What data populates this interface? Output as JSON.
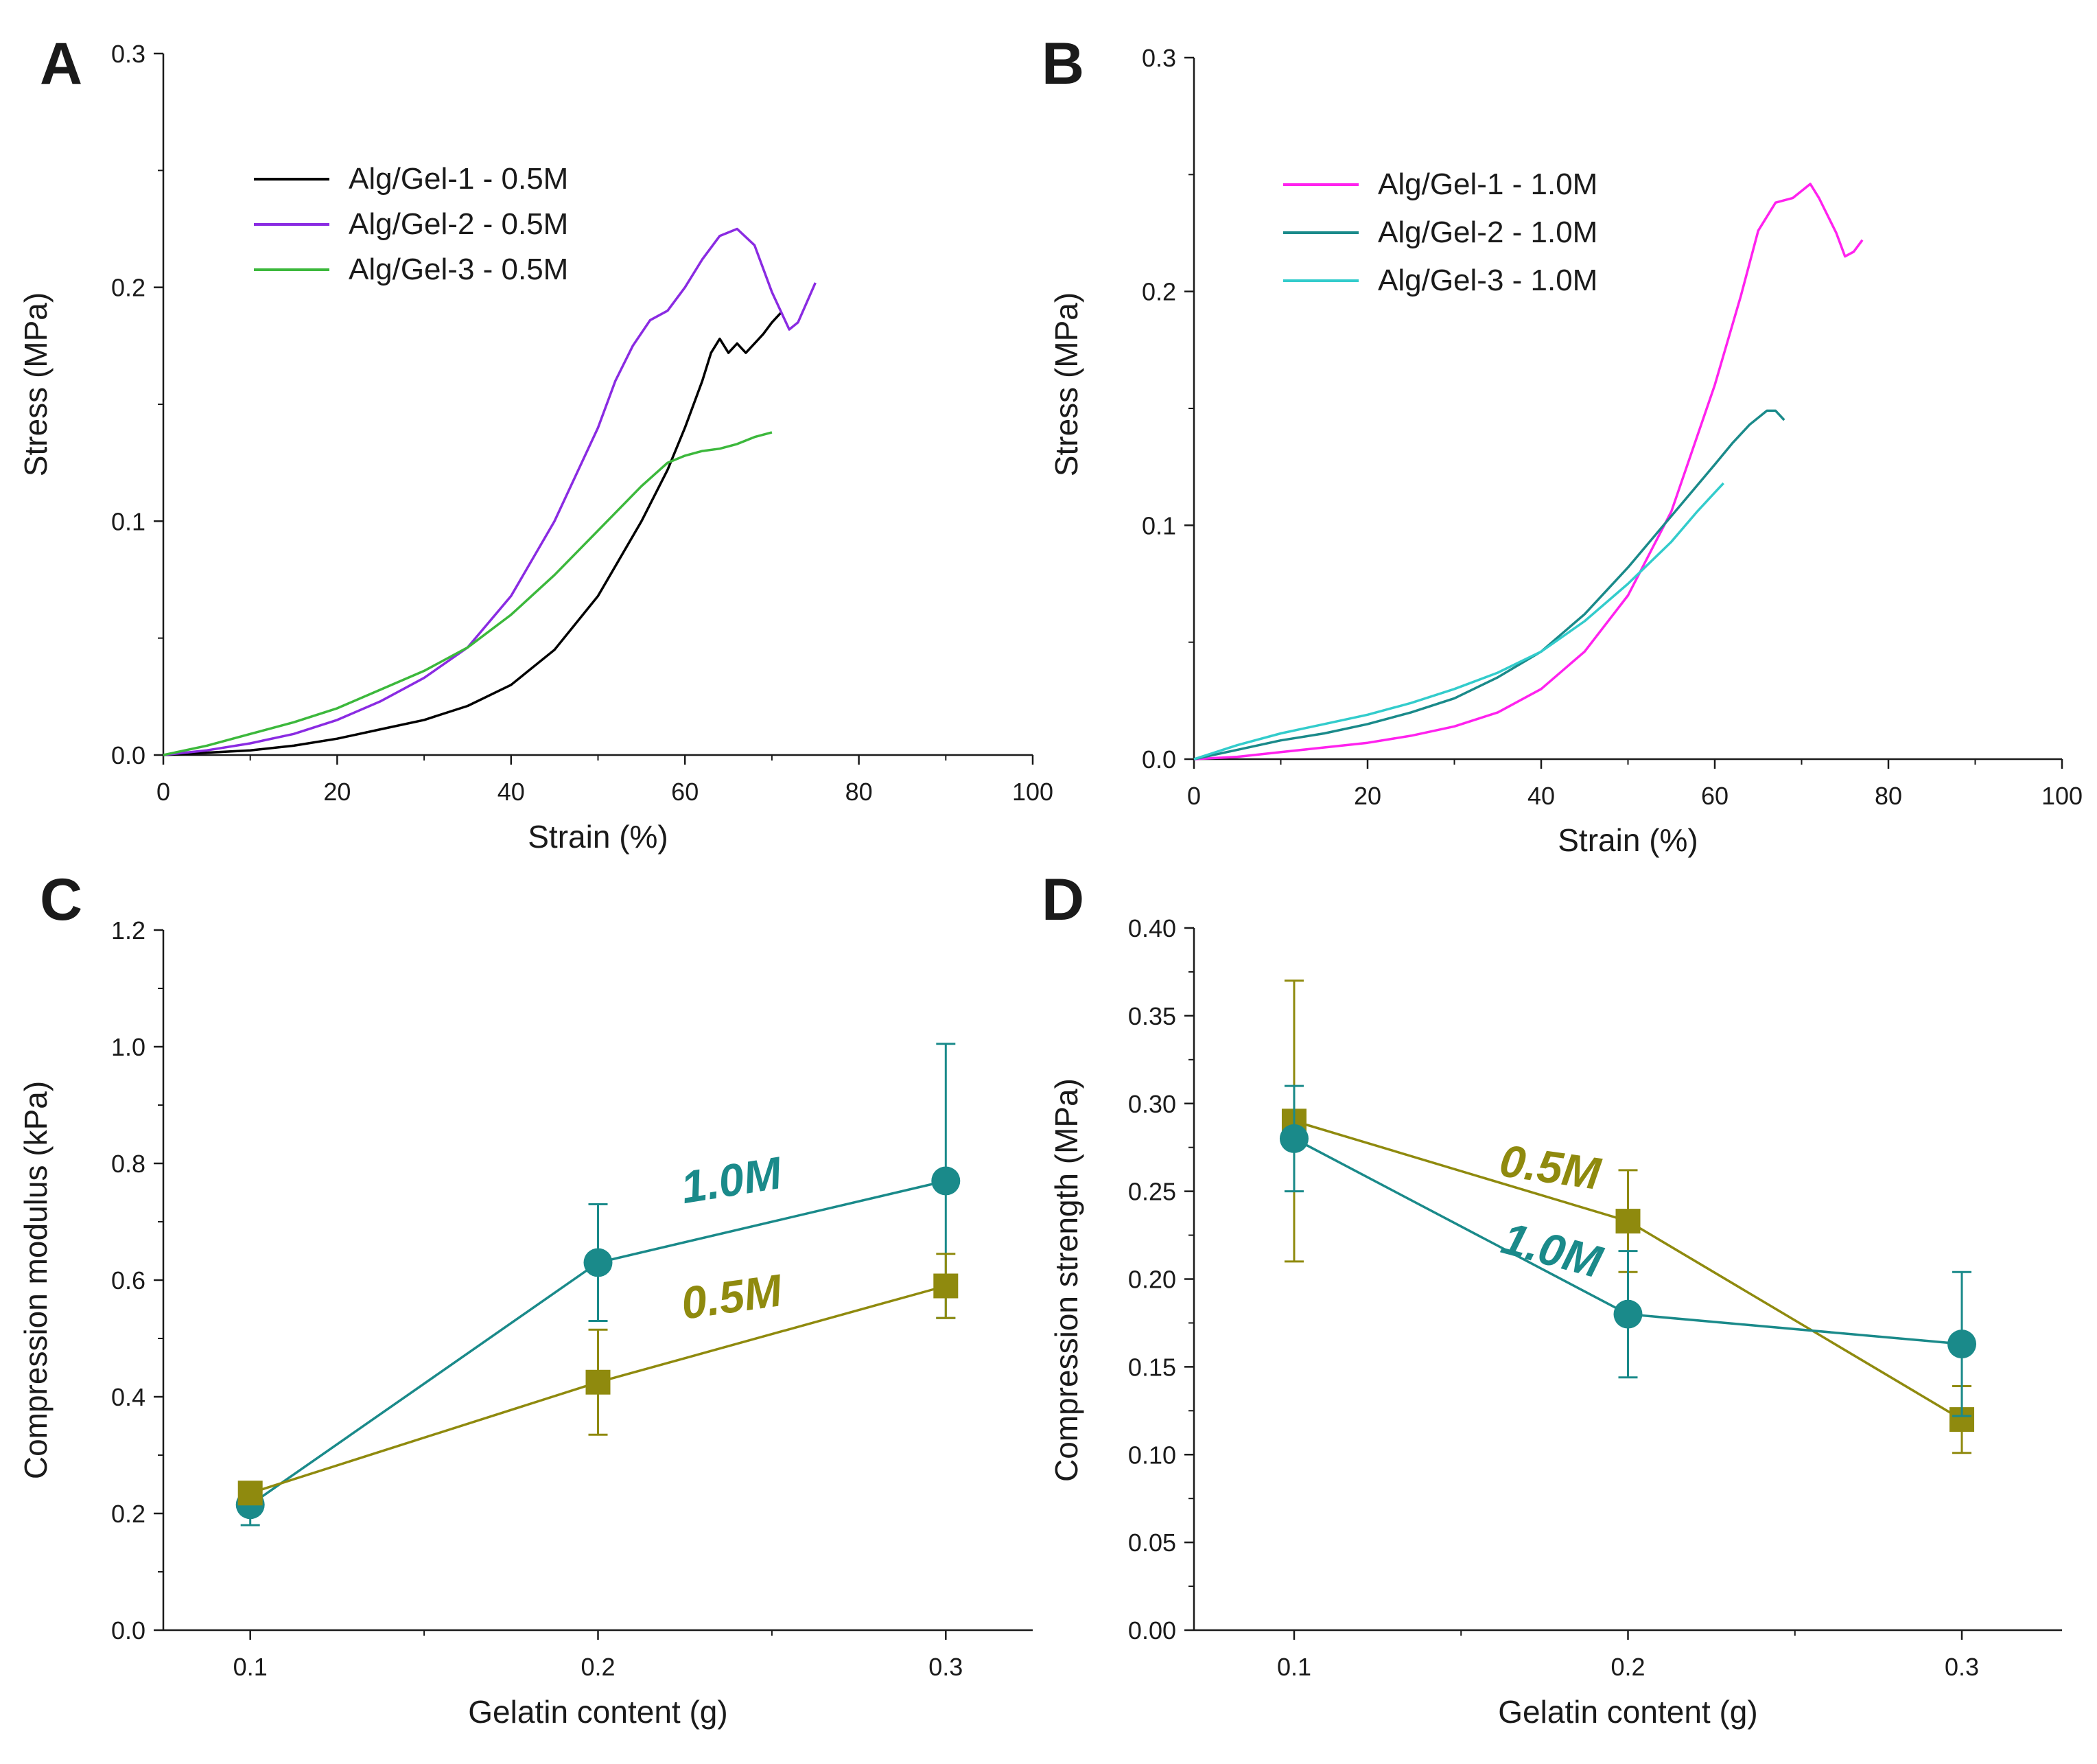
{
  "colors": {
    "axis": "#1a1a1a",
    "black": "#000000",
    "purple": "#8a2be2",
    "green": "#3cb83c",
    "magenta": "#ff22ee",
    "teal": "#1a8a8a",
    "cyan": "#33cccc",
    "olive": "#8f8a0e"
  },
  "chart_data": [
    {
      "panel": "A",
      "type": "line",
      "title": "",
      "xlabel": "Strain (%)",
      "ylabel": "Stress (MPa)",
      "xlim": [
        0,
        100
      ],
      "ylim": [
        0,
        0.3
      ],
      "xticks": [
        0,
        20,
        40,
        60,
        80,
        100
      ],
      "xtick_labels": [
        "0",
        "20",
        "40",
        "60",
        "80",
        "100"
      ],
      "yticks": [
        0,
        0.1,
        0.2,
        0.3
      ],
      "ytick_labels": [
        "0.0",
        "0.1",
        "0.2",
        "0.3"
      ],
      "legend_position": "top-left",
      "series": [
        {
          "name": "Alg/Gel-1 - 0.5M",
          "color_key": "black",
          "x": [
            0,
            5,
            10,
            15,
            20,
            25,
            30,
            35,
            40,
            45,
            50,
            55,
            58,
            60,
            62,
            63,
            64,
            65,
            66,
            67,
            68,
            69,
            70,
            71
          ],
          "y": [
            0,
            0.001,
            0.002,
            0.004,
            0.007,
            0.011,
            0.015,
            0.021,
            0.03,
            0.045,
            0.068,
            0.1,
            0.122,
            0.14,
            0.16,
            0.172,
            0.178,
            0.172,
            0.176,
            0.172,
            0.176,
            0.18,
            0.185,
            0.189
          ]
        },
        {
          "name": "Alg/Gel-2 - 0.5M",
          "color_key": "purple",
          "x": [
            0,
            5,
            10,
            15,
            20,
            25,
            30,
            35,
            40,
            45,
            50,
            52,
            54,
            56,
            58,
            60,
            62,
            64,
            66,
            68,
            70,
            72,
            73,
            75
          ],
          "y": [
            0,
            0.002,
            0.005,
            0.009,
            0.015,
            0.023,
            0.033,
            0.046,
            0.068,
            0.1,
            0.14,
            0.16,
            0.175,
            0.186,
            0.19,
            0.2,
            0.212,
            0.222,
            0.225,
            0.218,
            0.198,
            0.182,
            0.185,
            0.202
          ]
        },
        {
          "name": "Alg/Gel-3 - 0.5M",
          "color_key": "green",
          "x": [
            0,
            5,
            10,
            15,
            20,
            25,
            30,
            35,
            40,
            45,
            50,
            55,
            58,
            60,
            62,
            64,
            66,
            68,
            70
          ],
          "y": [
            0,
            0.004,
            0.009,
            0.014,
            0.02,
            0.028,
            0.036,
            0.046,
            0.06,
            0.077,
            0.096,
            0.115,
            0.125,
            0.128,
            0.13,
            0.131,
            0.133,
            0.136,
            0.138
          ]
        }
      ]
    },
    {
      "panel": "B",
      "type": "line",
      "title": "",
      "xlabel": "Strain (%)",
      "ylabel": "Stress (MPa)",
      "xlim": [
        0,
        100
      ],
      "ylim": [
        0,
        0.3
      ],
      "xticks": [
        0,
        20,
        40,
        60,
        80,
        100
      ],
      "xtick_labels": [
        "0",
        "20",
        "40",
        "60",
        "80",
        "100"
      ],
      "yticks": [
        0,
        0.1,
        0.2,
        0.3
      ],
      "ytick_labels": [
        "0.0",
        "0.1",
        "0.2",
        "0.3"
      ],
      "legend_position": "top-left",
      "series": [
        {
          "name": "Alg/Gel-1 - 1.0M",
          "color_key": "magenta",
          "x": [
            0,
            5,
            10,
            15,
            20,
            25,
            30,
            35,
            40,
            45,
            50,
            55,
            60,
            63,
            65,
            67,
            69,
            71,
            72,
            74,
            75,
            76,
            77
          ],
          "y": [
            0,
            0.001,
            0.003,
            0.005,
            0.007,
            0.01,
            0.014,
            0.02,
            0.03,
            0.046,
            0.07,
            0.106,
            0.16,
            0.198,
            0.226,
            0.238,
            0.24,
            0.246,
            0.24,
            0.225,
            0.215,
            0.217,
            0.222
          ]
        },
        {
          "name": "Alg/Gel-2 - 1.0M",
          "color_key": "teal",
          "x": [
            0,
            5,
            10,
            15,
            20,
            25,
            30,
            35,
            40,
            45,
            50,
            55,
            60,
            62,
            64,
            66,
            67,
            68
          ],
          "y": [
            0,
            0.004,
            0.008,
            0.011,
            0.015,
            0.02,
            0.026,
            0.035,
            0.046,
            0.062,
            0.082,
            0.104,
            0.126,
            0.135,
            0.143,
            0.149,
            0.149,
            0.145
          ]
        },
        {
          "name": "Alg/Gel-3 - 1.0M",
          "color_key": "cyan",
          "x": [
            0,
            5,
            10,
            15,
            20,
            25,
            30,
            35,
            40,
            45,
            50,
            55,
            58,
            60,
            61
          ],
          "y": [
            0,
            0.006,
            0.011,
            0.015,
            0.019,
            0.024,
            0.03,
            0.037,
            0.046,
            0.059,
            0.075,
            0.093,
            0.106,
            0.114,
            0.118
          ]
        }
      ]
    },
    {
      "panel": "C",
      "type": "line",
      "title": "",
      "xlabel": "Gelatin content (g)",
      "ylabel": "Compression modulus (kPa)",
      "xlim": [
        0.075,
        0.325
      ],
      "ylim": [
        0,
        1.2
      ],
      "xticks": [
        0.1,
        0.2,
        0.3
      ],
      "xtick_labels": [
        "0.1",
        "0.2",
        "0.3"
      ],
      "yticks": [
        0,
        0.2,
        0.4,
        0.6,
        0.8,
        1.0,
        1.2
      ],
      "ytick_labels": [
        "0.0",
        "0.2",
        "0.4",
        "0.6",
        "0.8",
        "1.0",
        "1.2"
      ],
      "series": [
        {
          "name": "1.0M",
          "color_key": "teal",
          "marker": "circle",
          "x": [
            0.1,
            0.2,
            0.3
          ],
          "y": [
            0.215,
            0.63,
            0.77
          ],
          "err": [
            0.035,
            0.1,
            0.235
          ],
          "label_at": [
            0.239,
            0.745
          ],
          "label_angle": -9
        },
        {
          "name": "0.5M",
          "color_key": "olive",
          "marker": "square",
          "x": [
            0.1,
            0.2,
            0.3
          ],
          "y": [
            0.235,
            0.425,
            0.59
          ],
          "err": [
            0.01,
            0.09,
            0.055
          ],
          "label_at": [
            0.239,
            0.545
          ],
          "label_angle": -8
        }
      ]
    },
    {
      "panel": "D",
      "type": "line",
      "title": "",
      "xlabel": "Gelatin content (g)",
      "ylabel": "Compression strength (MPa)",
      "xlim": [
        0.07,
        0.33
      ],
      "ylim": [
        0,
        0.4
      ],
      "xticks": [
        0.1,
        0.2,
        0.3
      ],
      "xtick_labels": [
        "0.1",
        "0.2",
        "0.3"
      ],
      "yticks": [
        0,
        0.05,
        0.1,
        0.15,
        0.2,
        0.25,
        0.3,
        0.35,
        0.4
      ],
      "ytick_labels": [
        "0.00",
        "0.05",
        "0.10",
        "0.15",
        "0.20",
        "0.25",
        "0.30",
        "0.35",
        "0.40"
      ],
      "series": [
        {
          "name": "0.5M",
          "color_key": "olive",
          "marker": "square",
          "x": [
            0.1,
            0.2,
            0.3
          ],
          "y": [
            0.29,
            0.233,
            0.12
          ],
          "err": [
            0.08,
            0.029,
            0.019
          ],
          "label_at": [
            0.176,
            0.255
          ],
          "label_angle": 8
        },
        {
          "name": "1.0M",
          "color_key": "teal",
          "marker": "circle",
          "x": [
            0.1,
            0.2,
            0.3
          ],
          "y": [
            0.28,
            0.18,
            0.163
          ],
          "err": [
            0.03,
            0.036,
            0.041
          ],
          "label_at": [
            0.176,
            0.208
          ],
          "label_angle": 15
        }
      ]
    }
  ]
}
